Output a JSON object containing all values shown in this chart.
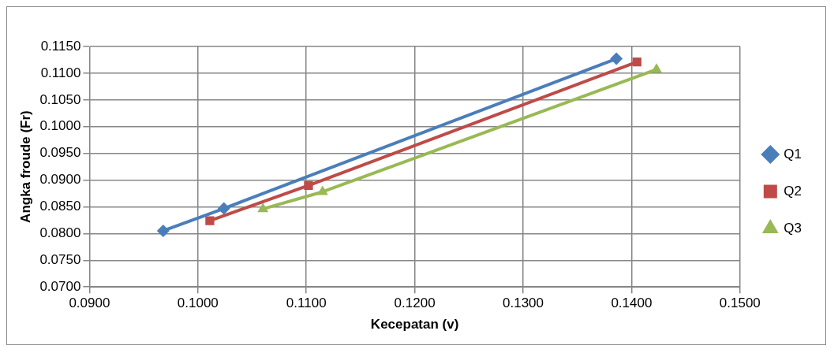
{
  "chart_data": {
    "type": "line",
    "xlabel": "Kecepatan (v)",
    "ylabel": "Angka froude (Fr)",
    "series": [
      {
        "name": "Q1",
        "color": "#4a7ebb",
        "marker": "diamond",
        "x": [
          0.0968,
          0.1024,
          0.1386
        ],
        "values": [
          0.0805,
          0.0847,
          0.1127
        ]
      },
      {
        "name": "Q2",
        "color": "#be4b48",
        "marker": "square",
        "x": [
          0.1011,
          0.1102,
          0.1405
        ],
        "values": [
          0.0824,
          0.089,
          0.1121
        ]
      },
      {
        "name": "Q3",
        "color": "#98b954",
        "marker": "triangle",
        "x": [
          0.106,
          0.1115,
          0.1423
        ],
        "values": [
          0.0846,
          0.0878,
          0.1107
        ]
      }
    ],
    "xlim": [
      0.09,
      0.15
    ],
    "xticks": [
      {
        "value": 0.09,
        "label": "0.0900"
      },
      {
        "value": 0.1,
        "label": "0.1000"
      },
      {
        "value": 0.11,
        "label": "0.1100"
      },
      {
        "value": 0.12,
        "label": "0.1200"
      },
      {
        "value": 0.13,
        "label": "0.1300"
      },
      {
        "value": 0.14,
        "label": "0.1400"
      },
      {
        "value": 0.15,
        "label": "0.1500"
      }
    ],
    "ylim": [
      0.07,
      0.115
    ],
    "yticks": [
      {
        "value": 0.07,
        "label": "0.0700"
      },
      {
        "value": 0.075,
        "label": "0.0750"
      },
      {
        "value": 0.08,
        "label": "0.0800"
      },
      {
        "value": 0.085,
        "label": "0.0850"
      },
      {
        "value": 0.09,
        "label": "0.0900"
      },
      {
        "value": 0.095,
        "label": "0.0950"
      },
      {
        "value": 0.1,
        "label": "0.1000"
      },
      {
        "value": 0.105,
        "label": "0.1050"
      },
      {
        "value": 0.11,
        "label": "0.1100"
      },
      {
        "value": 0.115,
        "label": "0.1150"
      }
    ],
    "grid": true,
    "legend": "right",
    "line_style": "solid"
  }
}
